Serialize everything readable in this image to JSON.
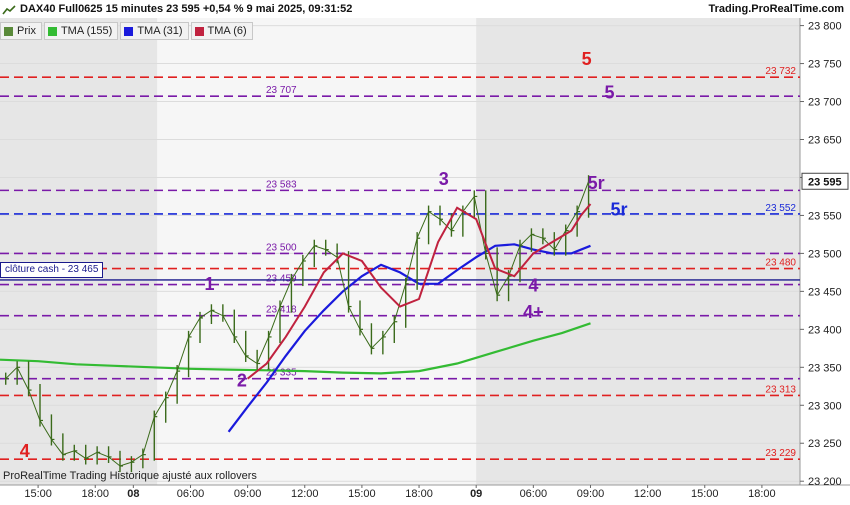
{
  "header": {
    "title": "DAX40 Full0625 15 minutes 23 595 +0,54 % 9 mai 2025, 09:31:52",
    "brand": "Trading.ProRealTime.com"
  },
  "legend": [
    {
      "label": "Prix",
      "color": "#5a8a3a"
    },
    {
      "label": "TMA (155)",
      "color": "#33bb33"
    },
    {
      "label": "TMA (31)",
      "color": "#1a1adc"
    },
    {
      "label": "TMA (6)",
      "color": "#c0223f"
    }
  ],
  "cash_close_label": "clôture cash -  23 465",
  "footer": "ProRealTime Trading  Historique ajusté aux rollovers",
  "colors": {
    "price_up": "#3a6a1a",
    "tma155": "#33bb33",
    "tma31": "#1a1adc",
    "tma6": "#c0223f",
    "tma6_alt": "#f08aa8",
    "cyan": "#55e0e8",
    "red_level": "#e02020",
    "purple_level": "#7a1aa8",
    "blue_level": "#1a2ad8",
    "cash_line": "#1a1a8c"
  },
  "chart_data": {
    "type": "line",
    "title": "DAX40 Full0625 15 minutes",
    "xlabel": "",
    "ylabel": "",
    "ylim": [
      23195,
      23810
    ],
    "y_ticks": [
      23200,
      23250,
      23300,
      23350,
      23400,
      23450,
      23500,
      23550,
      23600,
      23650,
      23700,
      23750,
      23800
    ],
    "y_tick_labels": [
      "23 200",
      "23 250",
      "23 300",
      "23 350",
      "23 400",
      "23 450",
      "23 500",
      "23 550",
      "23 600",
      "23 650",
      "23 700",
      "23 750",
      "23 800"
    ],
    "x_tick_labels": [
      "15:00",
      "18:00",
      "08",
      "06:00",
      "09:00",
      "12:00",
      "15:00",
      "18:00",
      "09",
      "06:00",
      "09:00",
      "12:00",
      "15:00",
      "18:00"
    ],
    "x_tick_pos": [
      2,
      5,
      7,
      10,
      13,
      16,
      19,
      22,
      25,
      28,
      31,
      34,
      37,
      40
    ],
    "x_bold": [
      false,
      false,
      true,
      false,
      false,
      false,
      false,
      false,
      true,
      false,
      false,
      false,
      false,
      false
    ],
    "x_range": [
      0,
      42
    ],
    "shaded_sessions": [
      [
        0,
        8.25
      ],
      [
        25,
        42
      ]
    ],
    "last_price": 23595,
    "last_price_label": "23 595",
    "levels": [
      {
        "value": 23732,
        "label": "23 732",
        "color": "red",
        "label_side": "right"
      },
      {
        "value": 23707,
        "label": "23 707",
        "color": "purple",
        "label_side": "left"
      },
      {
        "value": 23583,
        "label": "23 583",
        "color": "purple",
        "label_side": "left"
      },
      {
        "value": 23552,
        "label": "23 552",
        "color": "blue",
        "label_side": "right"
      },
      {
        "value": 23500,
        "label": "23 500",
        "color": "purple",
        "label_side": "left"
      },
      {
        "value": 23480,
        "label": "23 480",
        "color": "red",
        "label_side": "right"
      },
      {
        "value": 23459,
        "label": "23 459",
        "color": "purple",
        "label_side": "left"
      },
      {
        "value": 23418,
        "label": "23 418",
        "color": "purple",
        "label_side": "left"
      },
      {
        "value": 23335,
        "label": "23 335",
        "color": "purple",
        "label_side": "left"
      },
      {
        "value": 23313,
        "label": "23 313",
        "color": "red",
        "label_side": "right"
      },
      {
        "value": 23229,
        "label": "23 229",
        "color": "red",
        "label_side": "right"
      }
    ],
    "cash_close": 23465,
    "annotations": [
      {
        "text": "5",
        "x": 30.8,
        "y": 23748,
        "color": "red"
      },
      {
        "text": "5",
        "x": 32.0,
        "y": 23704,
        "color": "purple"
      },
      {
        "text": "3",
        "x": 23.3,
        "y": 23590,
        "color": "purple"
      },
      {
        "text": "5r",
        "x": 31.3,
        "y": 23585,
        "color": "purple"
      },
      {
        "text": "5r",
        "x": 32.5,
        "y": 23550,
        "color": "blue"
      },
      {
        "text": "1",
        "x": 11.0,
        "y": 23452,
        "color": "purple"
      },
      {
        "text": "4",
        "x": 28.0,
        "y": 23450,
        "color": "purple"
      },
      {
        "text": "4+",
        "x": 28.0,
        "y": 23415,
        "color": "purple"
      },
      {
        "text": "2",
        "x": 12.7,
        "y": 23325,
        "color": "purple"
      },
      {
        "text": "4",
        "x": 1.3,
        "y": 23232,
        "color": "red"
      }
    ],
    "series": [
      {
        "name": "Prix",
        "x": [
          0.3,
          0.9,
          1.5,
          2.1,
          2.7,
          3.3,
          3.9,
          4.5,
          5.1,
          5.7,
          6.3,
          6.9,
          7.5,
          8.1,
          8.7,
          9.3,
          9.9,
          10.5,
          11.1,
          11.7,
          12.3,
          12.9,
          13.5,
          14.1,
          14.7,
          15.3,
          15.9,
          16.5,
          17.1,
          17.7,
          18.3,
          18.9,
          19.5,
          20.1,
          20.7,
          21.3,
          21.9,
          22.5,
          23.1,
          23.7,
          24.3,
          24.9,
          25.5,
          26.1,
          26.7,
          27.3,
          27.9,
          28.5,
          29.1,
          29.7,
          30.3,
          30.9
        ],
        "values": [
          23335,
          23350,
          23320,
          23280,
          23255,
          23235,
          23240,
          23230,
          23238,
          23232,
          23220,
          23225,
          23235,
          23285,
          23310,
          23345,
          23390,
          23415,
          23425,
          23418,
          23390,
          23365,
          23355,
          23390,
          23430,
          23465,
          23490,
          23510,
          23505,
          23495,
          23430,
          23400,
          23375,
          23390,
          23410,
          23460,
          23520,
          23555,
          23545,
          23530,
          23555,
          23575,
          23500,
          23445,
          23470,
          23510,
          23525,
          23520,
          23505,
          23530,
          23555,
          23595
        ]
      },
      {
        "name": "TMA (155)",
        "x": [
          0,
          2,
          4,
          6,
          8,
          10,
          12,
          14,
          16,
          18,
          20,
          22,
          24,
          26,
          28,
          29.5,
          31
        ],
        "values": [
          23360,
          23358,
          23354,
          23352,
          23350,
          23348,
          23347,
          23346,
          23345,
          23343,
          23342,
          23345,
          23355,
          23370,
          23385,
          23395,
          23408
        ]
      },
      {
        "name": "TMA (31)",
        "x": [
          12.0,
          13.0,
          14.0,
          15.0,
          16.0,
          17.0,
          18.0,
          19.0,
          20.0,
          21.0,
          22.0,
          23.0,
          24.0,
          25.0,
          26.0,
          27.0,
          28.0,
          29.0,
          30.0,
          31.0
        ],
        "values": [
          23265,
          23298,
          23330,
          23365,
          23398,
          23425,
          23450,
          23470,
          23485,
          23475,
          23460,
          23460,
          23478,
          23495,
          23510,
          23512,
          23505,
          23500,
          23500,
          23510
        ]
      },
      {
        "name": "TMA (6)",
        "x": [
          13.0,
          14.0,
          15.0,
          16.0,
          17.0,
          18.0,
          19.0,
          20.0,
          21.0,
          22.0,
          23.0,
          24.0,
          25.0,
          26.0,
          27.0,
          28.0,
          29.0,
          30.0,
          30.5,
          31.0
        ],
        "values": [
          23335,
          23355,
          23390,
          23430,
          23475,
          23500,
          23490,
          23455,
          23430,
          23440,
          23515,
          23560,
          23545,
          23480,
          23470,
          23500,
          23515,
          23530,
          23550,
          23565
        ]
      }
    ]
  }
}
